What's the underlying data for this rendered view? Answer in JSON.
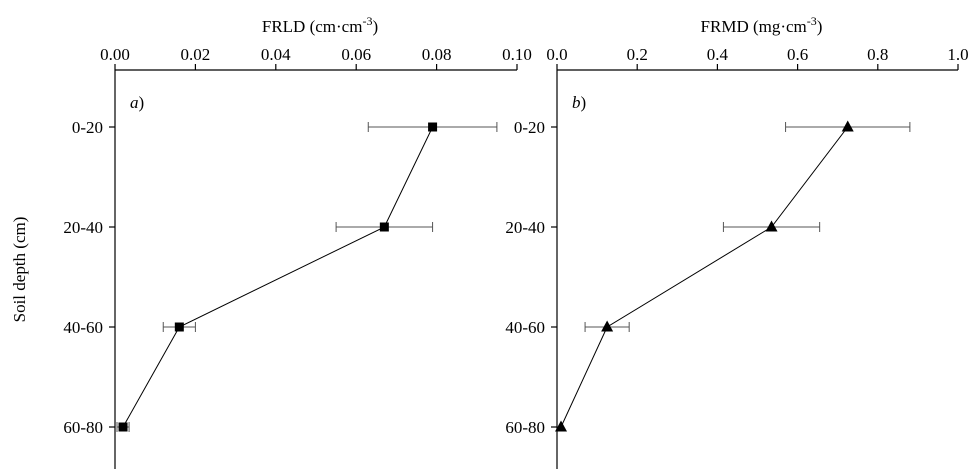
{
  "figure": {
    "ylabel": "Soil depth (cm)",
    "depth_labels": [
      "0-20",
      "20-40",
      "40-60",
      "60-80"
    ]
  },
  "chart_data": [
    {
      "type": "line",
      "panel_label": "a",
      "panel_label_suffix": ")",
      "xlabel_text": "FRLD (cm·cm",
      "xlabel_sup": "-3",
      "xlabel_close": ")",
      "xlabel": "FRLD (cm·cm-3)",
      "ylabel": "Soil depth (cm)",
      "x_axis_position": "top",
      "xlim": [
        0,
        0.1
      ],
      "x_ticks": [
        0,
        0.02,
        0.04,
        0.06,
        0.08,
        0.1
      ],
      "x_tick_labels": [
        "0.00",
        "0.02",
        "0.04",
        "0.06",
        "0.08",
        "0.10"
      ],
      "categories": [
        "0-20",
        "20-40",
        "40-60",
        "60-80"
      ],
      "marker": "square",
      "grid": false,
      "series": [
        {
          "values": [
            0.079,
            0.067,
            0.016,
            0.002
          ],
          "errors": [
            0.016,
            0.012,
            0.004,
            0.0015
          ]
        }
      ]
    },
    {
      "type": "line",
      "panel_label": "b",
      "panel_label_suffix": ")",
      "xlabel_text": "FRMD (mg·cm",
      "xlabel_sup": "-3",
      "xlabel_close": ")",
      "xlabel": "FRMD (mg·cm-3)",
      "x_axis_position": "top",
      "xlim": [
        0,
        1
      ],
      "x_ticks": [
        0,
        0.2,
        0.4,
        0.6,
        0.8,
        1.0
      ],
      "x_tick_labels": [
        "0.0",
        "0.2",
        "0.4",
        "0.6",
        "0.8",
        "1.0"
      ],
      "categories": [
        "0-20",
        "20-40",
        "40-60",
        "60-80"
      ],
      "marker": "triangle",
      "grid": false,
      "series": [
        {
          "values": [
            0.725,
            0.535,
            0.125,
            0.01
          ],
          "errors": [
            0.155,
            0.12,
            0.055,
            0.0
          ]
        }
      ]
    }
  ]
}
